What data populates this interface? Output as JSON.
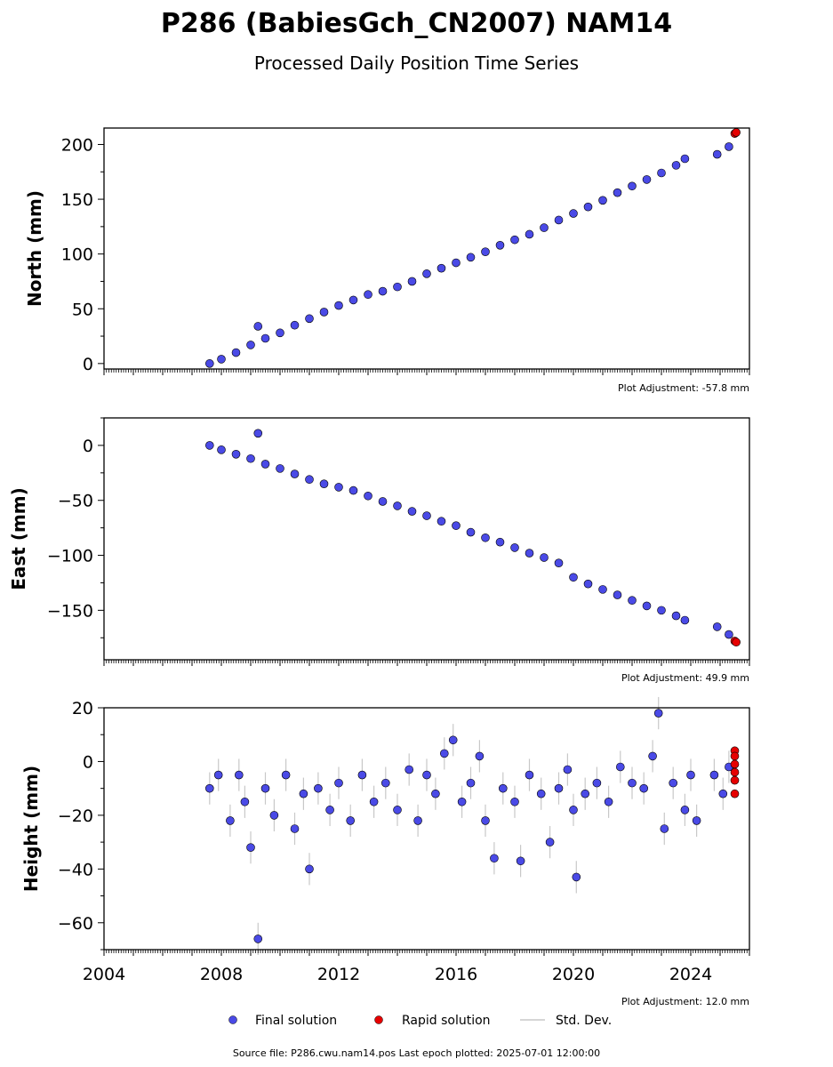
{
  "title": "P286 (BabiesGch_CN2007) NAM14",
  "subtitle": "Processed Daily Position Time Series",
  "footer": "Source file: P286.cwu.nam14.pos  Last epoch plotted: 2025-07-01 12:00:00",
  "legend": {
    "final": "Final solution",
    "rapid": "Rapid solution",
    "std": "Std. Dev."
  },
  "colors": {
    "final": "#4a4ae6",
    "rapid": "#e60000",
    "std": "#c8c8c8"
  },
  "chart_data": [
    {
      "type": "scatter",
      "ylabel": "North (mm)",
      "ylim": [
        -5,
        215
      ],
      "yticks": [
        0,
        50,
        100,
        150,
        200
      ],
      "xlim": [
        2004.0,
        2026.0
      ],
      "grid": false,
      "adjustment": "Plot Adjustment: -57.8 mm",
      "series": [
        {
          "name": "Final solution",
          "points": [
            [
              2007.6,
              0
            ],
            [
              2008.0,
              4
            ],
            [
              2008.5,
              10
            ],
            [
              2009.0,
              17
            ],
            [
              2009.5,
              23
            ],
            [
              2010.0,
              28
            ],
            [
              2010.5,
              35
            ],
            [
              2011.0,
              41
            ],
            [
              2011.5,
              47
            ],
            [
              2012.0,
              53
            ],
            [
              2012.5,
              58
            ],
            [
              2013.0,
              63
            ],
            [
              2013.5,
              66
            ],
            [
              2014.0,
              70
            ],
            [
              2014.5,
              75
            ],
            [
              2015.0,
              82
            ],
            [
              2015.5,
              87
            ],
            [
              2016.0,
              92
            ],
            [
              2016.5,
              97
            ],
            [
              2017.0,
              102
            ],
            [
              2017.5,
              108
            ],
            [
              2018.0,
              113
            ],
            [
              2018.5,
              118
            ],
            [
              2019.0,
              124
            ],
            [
              2019.5,
              131
            ],
            [
              2020.0,
              137
            ],
            [
              2020.5,
              143
            ],
            [
              2021.0,
              149
            ],
            [
              2021.5,
              156
            ],
            [
              2022.0,
              162
            ],
            [
              2022.5,
              168
            ],
            [
              2023.0,
              174
            ],
            [
              2023.5,
              181
            ],
            [
              2023.8,
              187
            ],
            [
              2024.9,
              191
            ],
            [
              2025.3,
              198
            ],
            [
              2009.25,
              34
            ]
          ]
        },
        {
          "name": "Rapid solution",
          "points": [
            [
              2025.5,
              210
            ],
            [
              2025.55,
              211
            ]
          ]
        }
      ]
    },
    {
      "type": "scatter",
      "ylabel": "East (mm)",
      "ylim": [
        -195,
        25
      ],
      "yticks": [
        0,
        -50,
        -100,
        -150
      ],
      "xlim": [
        2004.0,
        2026.0
      ],
      "grid": false,
      "adjustment": "Plot Adjustment: 49.9 mm",
      "series": [
        {
          "name": "Final solution",
          "points": [
            [
              2007.6,
              0
            ],
            [
              2008.0,
              -4
            ],
            [
              2008.5,
              -8
            ],
            [
              2009.0,
              -12
            ],
            [
              2009.5,
              -17
            ],
            [
              2010.0,
              -21
            ],
            [
              2010.5,
              -26
            ],
            [
              2011.0,
              -31
            ],
            [
              2011.5,
              -35
            ],
            [
              2012.0,
              -38
            ],
            [
              2012.5,
              -41
            ],
            [
              2013.0,
              -46
            ],
            [
              2013.5,
              -51
            ],
            [
              2014.0,
              -55
            ],
            [
              2014.5,
              -60
            ],
            [
              2015.0,
              -64
            ],
            [
              2015.5,
              -69
            ],
            [
              2016.0,
              -73
            ],
            [
              2016.5,
              -79
            ],
            [
              2017.0,
              -84
            ],
            [
              2017.5,
              -88
            ],
            [
              2018.0,
              -93
            ],
            [
              2018.5,
              -98
            ],
            [
              2019.0,
              -102
            ],
            [
              2019.5,
              -107
            ],
            [
              2020.0,
              -120
            ],
            [
              2020.5,
              -126
            ],
            [
              2021.0,
              -131
            ],
            [
              2021.5,
              -136
            ],
            [
              2022.0,
              -141
            ],
            [
              2022.5,
              -146
            ],
            [
              2023.0,
              -150
            ],
            [
              2023.5,
              -155
            ],
            [
              2023.8,
              -159
            ],
            [
              2024.9,
              -165
            ],
            [
              2025.3,
              -172
            ],
            [
              2009.25,
              11
            ]
          ]
        },
        {
          "name": "Rapid solution",
          "points": [
            [
              2025.5,
              -178
            ],
            [
              2025.55,
              -179
            ]
          ]
        }
      ]
    },
    {
      "type": "scatter",
      "ylabel": "Height (mm)",
      "ylim": [
        -70,
        20
      ],
      "yticks": [
        20,
        0,
        -20,
        -40,
        -60
      ],
      "xlim": [
        2004.0,
        2026.0
      ],
      "xticks": [
        2004,
        2008,
        2012,
        2016,
        2020,
        2024
      ],
      "grid": false,
      "adjustment": "Plot Adjustment: 12.0 mm",
      "series": [
        {
          "name": "Final solution",
          "points": [
            [
              2007.6,
              -10
            ],
            [
              2007.9,
              -5
            ],
            [
              2008.3,
              -22
            ],
            [
              2008.6,
              -5
            ],
            [
              2008.8,
              -15
            ],
            [
              2009.0,
              -32
            ],
            [
              2009.25,
              -66
            ],
            [
              2009.5,
              -10
            ],
            [
              2009.8,
              -20
            ],
            [
              2010.2,
              -5
            ],
            [
              2010.5,
              -25
            ],
            [
              2010.8,
              -12
            ],
            [
              2011.0,
              -40
            ],
            [
              2011.3,
              -10
            ],
            [
              2011.7,
              -18
            ],
            [
              2012.0,
              -8
            ],
            [
              2012.4,
              -22
            ],
            [
              2012.8,
              -5
            ],
            [
              2013.2,
              -15
            ],
            [
              2013.6,
              -8
            ],
            [
              2014.0,
              -18
            ],
            [
              2014.4,
              -3
            ],
            [
              2014.7,
              -22
            ],
            [
              2015.0,
              -5
            ],
            [
              2015.3,
              -12
            ],
            [
              2015.6,
              3
            ],
            [
              2015.9,
              8
            ],
            [
              2016.2,
              -15
            ],
            [
              2016.5,
              -8
            ],
            [
              2016.8,
              2
            ],
            [
              2017.0,
              -22
            ],
            [
              2017.3,
              -36
            ],
            [
              2017.6,
              -10
            ],
            [
              2018.0,
              -15
            ],
            [
              2018.2,
              -37
            ],
            [
              2018.5,
              -5
            ],
            [
              2018.9,
              -12
            ],
            [
              2019.2,
              -30
            ],
            [
              2019.5,
              -10
            ],
            [
              2019.8,
              -3
            ],
            [
              2020.0,
              -18
            ],
            [
              2020.1,
              -43
            ],
            [
              2020.4,
              -12
            ],
            [
              2020.8,
              -8
            ],
            [
              2021.2,
              -15
            ],
            [
              2021.6,
              -2
            ],
            [
              2022.0,
              -8
            ],
            [
              2022.4,
              -10
            ],
            [
              2022.7,
              2
            ],
            [
              2022.9,
              18
            ],
            [
              2023.1,
              -25
            ],
            [
              2023.4,
              -8
            ],
            [
              2023.8,
              -18
            ],
            [
              2024.0,
              -5
            ],
            [
              2024.2,
              -22
            ],
            [
              2024.8,
              -5
            ],
            [
              2025.1,
              -12
            ],
            [
              2025.3,
              -2
            ]
          ]
        },
        {
          "name": "Rapid solution",
          "points": [
            [
              2025.5,
              4
            ],
            [
              2025.5,
              2
            ],
            [
              2025.5,
              -1
            ],
            [
              2025.5,
              -4
            ],
            [
              2025.5,
              -7
            ],
            [
              2025.5,
              -12
            ]
          ]
        }
      ]
    }
  ]
}
